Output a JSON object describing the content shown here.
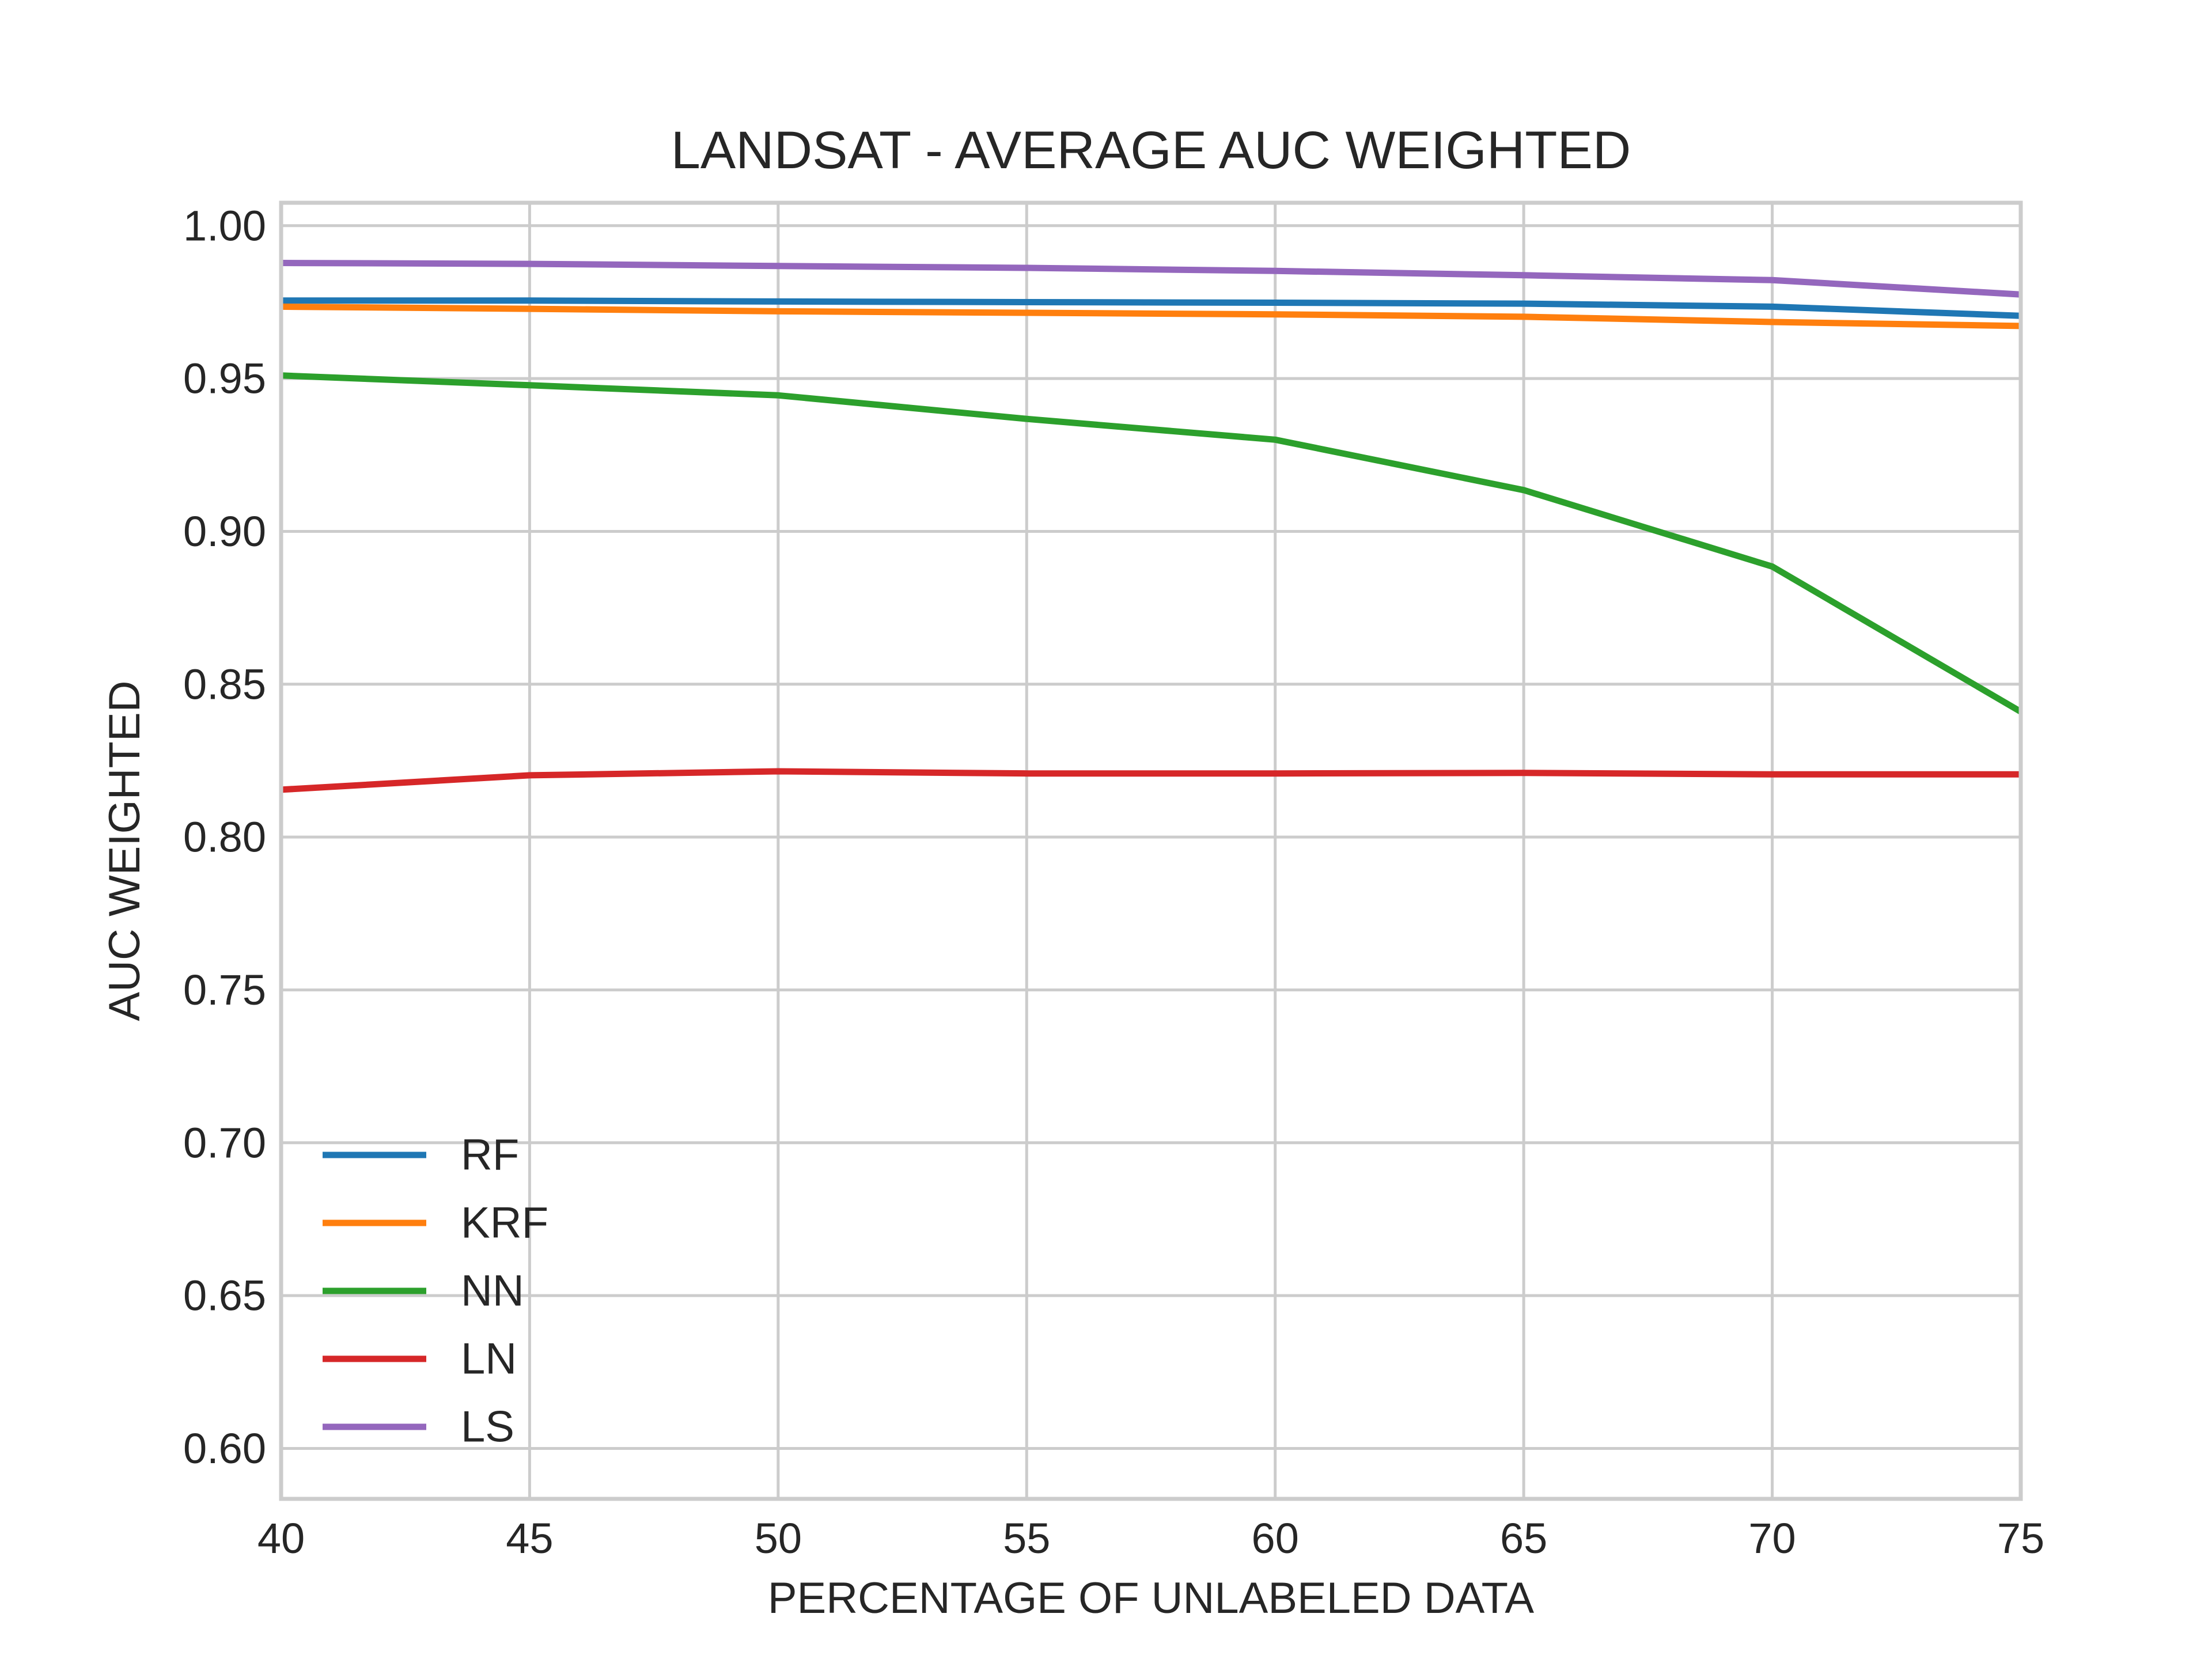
{
  "chart_data": {
    "type": "line",
    "title": "LANDSAT - AVERAGE AUC WEIGHTED",
    "xlabel": "PERCENTAGE OF UNLABELED DATA",
    "ylabel": "AUC WEIGHTED",
    "x": [
      40,
      45,
      50,
      55,
      60,
      65,
      70,
      75
    ],
    "xlim": [
      40,
      75
    ],
    "ylim": [
      0.5835,
      1.0075
    ],
    "xticks": [
      40,
      45,
      50,
      55,
      60,
      65,
      70,
      75
    ],
    "xtick_labels": [
      "40",
      "45",
      "50",
      "55",
      "60",
      "65",
      "70",
      "75"
    ],
    "yticks": [
      0.6,
      0.65,
      0.7,
      0.75,
      0.8,
      0.85,
      0.9,
      0.95,
      1.0
    ],
    "ytick_labels": [
      "0.60",
      "0.65",
      "0.70",
      "0.75",
      "0.80",
      "0.85",
      "0.90",
      "0.95",
      "1.00"
    ],
    "grid": true,
    "legend_position": "lower-left",
    "series": [
      {
        "name": "RF",
        "color": "#1f77b4",
        "values": [
          0.9755,
          0.9755,
          0.9752,
          0.975,
          0.9748,
          0.9745,
          0.9735,
          0.9705
        ]
      },
      {
        "name": "KRF",
        "color": "#ff7f0e",
        "values": [
          0.9735,
          0.9728,
          0.972,
          0.9715,
          0.971,
          0.9702,
          0.9685,
          0.9672
        ]
      },
      {
        "name": "NN",
        "color": "#2ca02c",
        "values": [
          0.951,
          0.9478,
          0.9445,
          0.9368,
          0.93,
          0.9135,
          0.8885,
          0.841
        ]
      },
      {
        "name": "LN",
        "color": "#d62728",
        "values": [
          0.8155,
          0.8202,
          0.8215,
          0.8208,
          0.8208,
          0.821,
          0.8205,
          0.8205
        ]
      },
      {
        "name": "LS",
        "color": "#9467bd",
        "values": [
          0.9878,
          0.9875,
          0.9868,
          0.9862,
          0.9852,
          0.9838,
          0.9822,
          0.9775
        ]
      }
    ]
  }
}
